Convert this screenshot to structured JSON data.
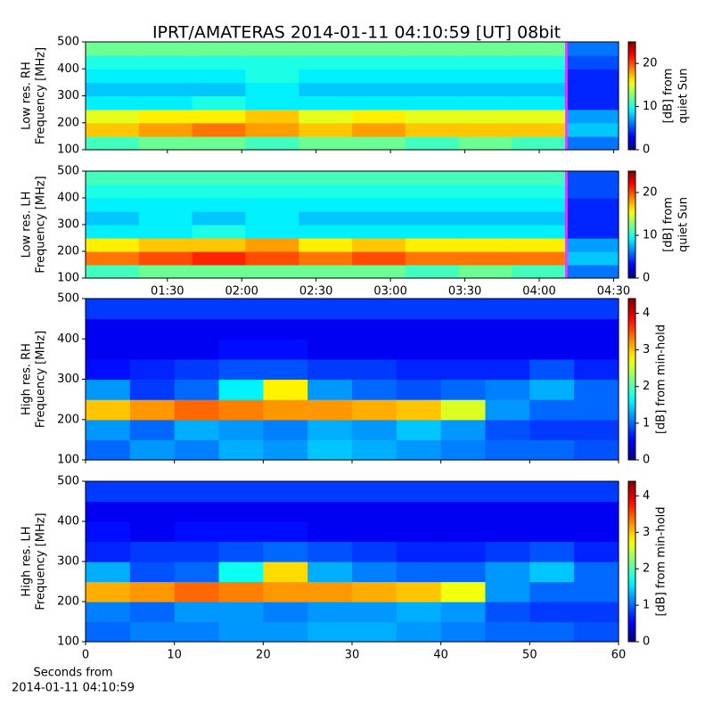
{
  "title": "IPRT/AMATERAS 2014-01-11 04:10:59 [UT]   08bit",
  "chart_data": [
    {
      "type": "heatmap",
      "ylabel": [
        "Low res. RH",
        "Frequency [MHz]"
      ],
      "colorbar_label": [
        "[dB] from",
        "quiet Sun"
      ],
      "xlim": [
        "00:57",
        "04:32"
      ],
      "xticks": [
        "01:30",
        "02:00",
        "02:30",
        "03:00",
        "03:30",
        "04:00",
        "04:30"
      ],
      "tick_labels": false,
      "ylim": [
        100,
        500
      ],
      "yticks": [
        100,
        200,
        300,
        400,
        500
      ],
      "clim": [
        0,
        25
      ],
      "cticks": [
        0,
        10,
        20
      ],
      "marker": {
        "x": "04:11",
        "color": "#ff33ff"
      },
      "z": [
        [
          11,
          12,
          12,
          11,
          12,
          12,
          11,
          12,
          11,
          6
        ],
        [
          17,
          18,
          19,
          18,
          17,
          18,
          17,
          17,
          17,
          8
        ],
        [
          15,
          16,
          16,
          17,
          15,
          16,
          15,
          15,
          15,
          7
        ],
        [
          9,
          9,
          10,
          9,
          9,
          9,
          9,
          9,
          9,
          4
        ],
        [
          8,
          8,
          8,
          9,
          8,
          8,
          8,
          8,
          8,
          4
        ],
        [
          9,
          9,
          9,
          10,
          9,
          9,
          9,
          9,
          9,
          4
        ],
        [
          10,
          10,
          10,
          10,
          10,
          10,
          10,
          10,
          10,
          5
        ],
        [
          12,
          12,
          12,
          12,
          12,
          12,
          12,
          12,
          12,
          6
        ]
      ]
    },
    {
      "type": "heatmap",
      "ylabel": [
        "Low res. LH",
        "Frequency [MHz]"
      ],
      "colorbar_label": [
        "[dB] from",
        "quiet Sun"
      ],
      "xlim": [
        "00:57",
        "04:32"
      ],
      "xticks": [
        "01:30",
        "02:00",
        "02:30",
        "03:00",
        "03:30",
        "04:00",
        "04:30"
      ],
      "tick_labels": true,
      "ylim": [
        100,
        500
      ],
      "yticks": [
        100,
        200,
        300,
        400,
        500
      ],
      "clim": [
        0,
        25
      ],
      "cticks": [
        0,
        10,
        20
      ],
      "marker": {
        "x": "04:11",
        "color": "#ff33ff"
      },
      "z": [
        [
          11,
          12,
          12,
          12,
          12,
          12,
          11,
          12,
          11,
          6
        ],
        [
          19,
          20,
          21,
          20,
          19,
          20,
          19,
          19,
          19,
          8
        ],
        [
          16,
          17,
          17,
          18,
          16,
          17,
          16,
          16,
          16,
          7
        ],
        [
          9,
          9,
          10,
          9,
          9,
          9,
          9,
          9,
          9,
          4
        ],
        [
          8,
          9,
          8,
          9,
          8,
          8,
          8,
          8,
          8,
          4
        ],
        [
          9,
          9,
          9,
          9,
          9,
          9,
          9,
          9,
          9,
          4
        ],
        [
          10,
          10,
          10,
          10,
          10,
          10,
          10,
          10,
          10,
          5
        ],
        [
          11,
          11,
          11,
          11,
          11,
          11,
          11,
          11,
          11,
          5
        ]
      ]
    },
    {
      "type": "heatmap",
      "ylabel": [
        "High res. RH",
        "Frequency [MHz]"
      ],
      "colorbar_label": [
        "[dB] from min-hold"
      ],
      "xlim": [
        0,
        60
      ],
      "xticks": [
        0,
        10,
        20,
        30,
        40,
        50,
        60
      ],
      "tick_labels": false,
      "ylim": [
        100,
        500
      ],
      "yticks": [
        100,
        200,
        300,
        400,
        500
      ],
      "clim": [
        0,
        4.4
      ],
      "cticks": [
        0,
        1,
        2,
        3,
        4
      ],
      "z": [
        [
          1.0,
          1.2,
          1.1,
          1.3,
          1.2,
          1.4,
          1.3,
          1.2,
          1.1,
          1.0,
          1.0,
          0.9
        ],
        [
          1.2,
          1.0,
          1.3,
          1.2,
          1.1,
          1.3,
          1.2,
          1.4,
          1.2,
          0.9,
          0.8,
          0.8
        ],
        [
          3.0,
          3.2,
          3.4,
          3.3,
          3.2,
          3.2,
          3.1,
          3.0,
          2.6,
          1.2,
          1.0,
          1.0
        ],
        [
          1.2,
          0.8,
          1.0,
          1.6,
          2.8,
          1.2,
          1.0,
          0.9,
          1.0,
          1.1,
          1.3,
          1.0
        ],
        [
          0.6,
          0.7,
          0.8,
          0.9,
          0.9,
          0.8,
          0.8,
          0.7,
          0.7,
          0.7,
          0.9,
          0.7
        ],
        [
          0.5,
          0.5,
          0.5,
          0.6,
          0.6,
          0.5,
          0.5,
          0.5,
          0.5,
          0.5,
          0.5,
          0.5
        ],
        [
          0.5,
          0.5,
          0.5,
          0.5,
          0.5,
          0.5,
          0.5,
          0.5,
          0.5,
          0.5,
          0.5,
          0.5
        ],
        [
          0.8,
          0.8,
          0.8,
          0.8,
          0.8,
          0.8,
          0.8,
          0.8,
          0.8,
          0.8,
          0.8,
          0.8
        ]
      ]
    },
    {
      "type": "heatmap",
      "ylabel": [
        "High res. LH",
        "Frequency [MHz]"
      ],
      "colorbar_label": [
        "[dB] from min-hold"
      ],
      "xlim": [
        0,
        60
      ],
      "xticks": [
        0,
        10,
        20,
        30,
        40,
        50,
        60
      ],
      "tick_labels": true,
      "xlabel": [
        "Seconds from",
        "2014-01-11 04:10:59"
      ],
      "ylim": [
        100,
        500
      ],
      "yticks": [
        100,
        200,
        300,
        400,
        500
      ],
      "clim": [
        0,
        4.4
      ],
      "cticks": [
        0,
        1,
        2,
        3,
        4
      ],
      "z": [
        [
          1.0,
          1.1,
          1.1,
          1.2,
          1.2,
          1.3,
          1.3,
          1.2,
          1.1,
          1.0,
          1.0,
          0.9
        ],
        [
          1.1,
          1.0,
          1.2,
          1.2,
          1.1,
          1.2,
          1.2,
          1.3,
          1.2,
          0.9,
          0.8,
          0.8
        ],
        [
          3.1,
          3.2,
          3.4,
          3.3,
          3.2,
          3.2,
          3.1,
          3.0,
          2.7,
          1.2,
          1.0,
          1.0
        ],
        [
          1.3,
          0.9,
          1.0,
          1.7,
          2.9,
          1.3,
          1.1,
          1.0,
          1.0,
          1.2,
          1.4,
          1.0
        ],
        [
          0.7,
          0.8,
          0.8,
          0.9,
          1.0,
          0.9,
          0.8,
          0.7,
          0.7,
          0.8,
          0.9,
          0.7
        ],
        [
          0.6,
          0.5,
          0.6,
          0.6,
          0.6,
          0.5,
          0.5,
          0.5,
          0.5,
          0.5,
          0.5,
          0.5
        ],
        [
          0.5,
          0.5,
          0.5,
          0.5,
          0.5,
          0.5,
          0.5,
          0.5,
          0.5,
          0.5,
          0.5,
          0.5
        ],
        [
          0.8,
          0.8,
          0.8,
          0.8,
          0.8,
          0.8,
          0.8,
          0.8,
          0.8,
          0.8,
          0.8,
          0.8
        ]
      ]
    }
  ]
}
